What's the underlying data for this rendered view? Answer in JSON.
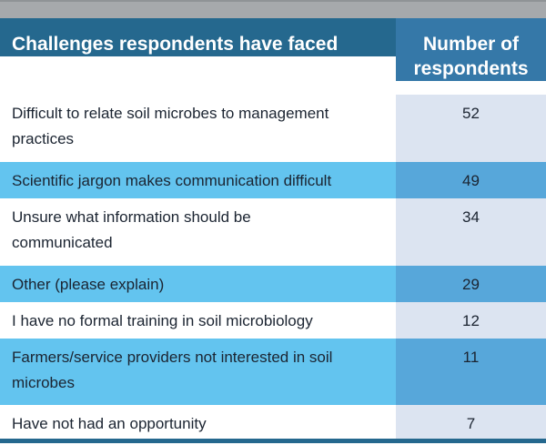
{
  "table": {
    "header": {
      "challenges": "Challenges respondents have faced",
      "respondents": "Number of\nrespondents"
    },
    "rows": [
      {
        "label": "Difficult to relate soil microbes to management\npractices",
        "value": 52
      },
      {
        "label": "Scientific jargon makes communication difficult",
        "value": 49
      },
      {
        "label": "Unsure what information should be\ncommunicated",
        "value": 34
      },
      {
        "label": "Other (please explain)",
        "value": 29
      },
      {
        "label": "I have no formal training in soil microbiology",
        "value": 12
      },
      {
        "label": "Farmers/service providers not interested in soil\nmicrobes",
        "value": 11
      },
      {
        "label": "Have not had an opportunity",
        "value": 7
      }
    ]
  },
  "colors": {
    "top_bar_gray": "#a6a9ac",
    "header_left_bg": "#25688e",
    "header_right_bg": "#3578a8",
    "header_text": "#ffffff",
    "row_light_bg": "#ffffff",
    "row_light_num_bg": "#dce4f1",
    "row_blue_bg": "#63c4ef",
    "row_blue_num_bg": "#57a7da",
    "body_text": "#1b2431",
    "bottom_bar": "#25688e"
  },
  "chart_data": {
    "type": "table",
    "title": "Challenges respondents have faced",
    "columns": [
      "Challenges respondents have faced",
      "Number of respondents"
    ],
    "categories": [
      "Difficult to relate soil microbes to management practices",
      "Scientific jargon makes communication difficult",
      "Unsure what information should be communicated",
      "Other (please explain)",
      "I have no formal training in soil microbiology",
      "Farmers/service providers not interested in soil microbes",
      "Have not had an opportunity"
    ],
    "values": [
      52,
      49,
      34,
      29,
      12,
      11,
      7
    ]
  }
}
